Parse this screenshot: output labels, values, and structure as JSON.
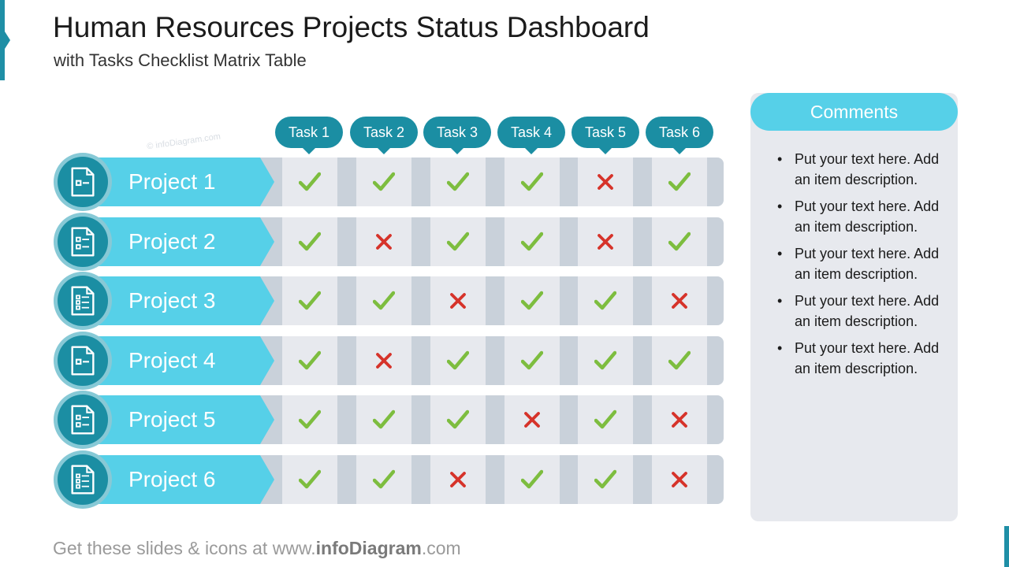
{
  "title": "Human Resources Projects Status Dashboard",
  "subtitle": "with Tasks Checklist Matrix Table",
  "watermark": "© infoDiagram.com",
  "colors": {
    "accent_dark": "#1b8ea3",
    "accent_light": "#56d0e8",
    "check": "#7dbd3f",
    "cross": "#d6332a",
    "cell_bg": "#e7e9ee",
    "strip_bg": "#c9d1da"
  },
  "tasks": [
    "Task 1",
    "Task 2",
    "Task 3",
    "Task 4",
    "Task 5",
    "Task 6"
  ],
  "projects": [
    {
      "name": "Project 1",
      "icon": "document-minus-icon",
      "status": [
        "check",
        "check",
        "check",
        "check",
        "cross",
        "check"
      ]
    },
    {
      "name": "Project 2",
      "icon": "document-checklist-icon",
      "status": [
        "check",
        "cross",
        "check",
        "check",
        "cross",
        "check"
      ]
    },
    {
      "name": "Project 3",
      "icon": "document-list-icon",
      "status": [
        "check",
        "check",
        "cross",
        "check",
        "check",
        "cross"
      ]
    },
    {
      "name": "Project 4",
      "icon": "document-minus-icon",
      "status": [
        "check",
        "cross",
        "check",
        "check",
        "check",
        "check"
      ]
    },
    {
      "name": "Project 5",
      "icon": "document-checklist-icon",
      "status": [
        "check",
        "check",
        "check",
        "cross",
        "check",
        "cross"
      ]
    },
    {
      "name": "Project 6",
      "icon": "document-list-icon",
      "status": [
        "check",
        "check",
        "cross",
        "check",
        "check",
        "cross"
      ]
    }
  ],
  "comments": {
    "title": "Comments",
    "items": [
      "Put your text here. Add an item description.",
      "Put your text here. Add an item description.",
      "Put your text here. Add an item description.",
      "Put your text here. Add an item description.",
      "Put your text here. Add an item description."
    ]
  },
  "footer": {
    "prefix": "Get these slides & icons at www.",
    "brand": "infoDiagram",
    "suffix": ".com"
  }
}
